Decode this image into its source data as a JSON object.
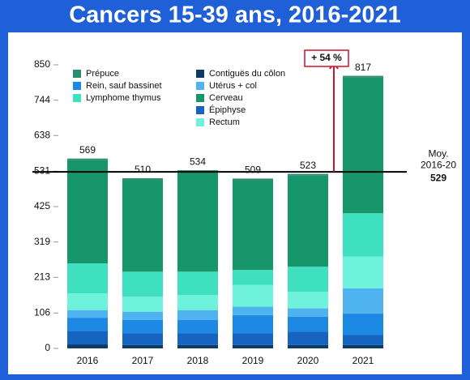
{
  "chart_data": {
    "type": "stacked-bar",
    "title": "Cancers 15-39 ans, 2016-2021",
    "categories": [
      "2016",
      "2017",
      "2018",
      "2019",
      "2020",
      "2021"
    ],
    "series": [
      {
        "name": "Contiguës du côlon",
        "color": "#0d3b66",
        "values": [
          12,
          10,
          10,
          10,
          10,
          10
        ]
      },
      {
        "name": "Épiphyse",
        "color": "#1565c0",
        "values": [
          40,
          35,
          35,
          35,
          40,
          30
        ]
      },
      {
        "name": "Rein, sauf bassinet",
        "color": "#1e88e5",
        "values": [
          40,
          40,
          40,
          55,
          45,
          65
        ]
      },
      {
        "name": "Utérus + col",
        "color": "#4fb3f0",
        "values": [
          23,
          25,
          30,
          25,
          25,
          75
        ]
      },
      {
        "name": "Rectum",
        "color": "#6ff2dc",
        "values": [
          50,
          45,
          45,
          65,
          50,
          95
        ]
      },
      {
        "name": "Lymphome thymus",
        "color": "#3fe0c0",
        "values": [
          90,
          75,
          70,
          45,
          75,
          130
        ]
      },
      {
        "name": "Cerveau",
        "color": "#16966a",
        "values": [
          309,
          275,
          299,
          269,
          273,
          407
        ]
      },
      {
        "name": "Prépuce",
        "color": "#2e8b73",
        "values": [
          5,
          5,
          5,
          5,
          5,
          5
        ]
      }
    ],
    "totals": [
      569,
      510,
      534,
      509,
      523,
      817
    ],
    "ylim": [
      0,
      850
    ],
    "yticks": [
      0,
      106,
      213,
      319,
      425,
      531,
      638,
      744,
      850
    ],
    "mean": 529,
    "mean_label": [
      "Moy.",
      "2016-20"
    ],
    "annotation": "+ 54 %"
  }
}
